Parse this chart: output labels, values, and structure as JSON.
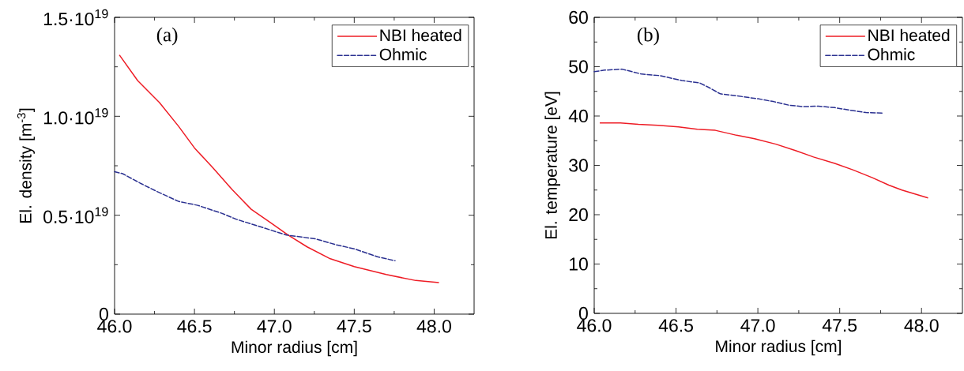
{
  "chart_data": [
    {
      "type": "line",
      "xlabel": "Minor radius [cm]",
      "ylabel": "El. density [m$^{-3}$]",
      "annotations": [
        "(a)"
      ],
      "xlim": [
        46,
        48.25
      ],
      "ylim": [
        0,
        1.5e+19
      ],
      "xticks": [
        {
          "value": 46,
          "label": "46.0"
        },
        {
          "value": 46.5,
          "label": "46.5"
        },
        {
          "value": 47,
          "label": "47.0"
        },
        {
          "value": 47.5,
          "label": "47.5"
        },
        {
          "value": 48,
          "label": "48.0"
        }
      ],
      "yticks": [
        0,
        {
          "value": 5e+18,
          "label": "0.5·10$^{19}$"
        },
        {
          "value": 1e+19,
          "label": "1.0·10$^{19}$"
        },
        {
          "value": 1.5e+19,
          "label": "1.5·10$^{19}$"
        }
      ],
      "legend": "top right",
      "series": [
        {
          "name": "NBI heated",
          "color": "#ee1c25",
          "line_style": "solid",
          "x": [
            46.03,
            46.145,
            46.28,
            46.4,
            46.5,
            46.615,
            46.735,
            46.855,
            46.98,
            47.085,
            47.205,
            47.35,
            47.5,
            47.7,
            47.885,
            48.03
          ],
          "values": [
            1.31e+19,
            1.18e+19,
            1.07e+19,
            9.5e+18,
            8.4e+18,
            7.4e+18,
            6.3e+18,
            5.3e+18,
            4.6e+18,
            4e+18,
            3.4e+18,
            2.8e+18,
            2.4e+18,
            2e+18,
            1.7e+18,
            1.6e+18
          ]
        },
        {
          "name": "Ohmic",
          "color": "#2b3191",
          "line_style": "dashed",
          "x": [
            46.0,
            46.05,
            46.165,
            46.265,
            46.4,
            46.52,
            46.67,
            46.76,
            46.88,
            47.075,
            47.17,
            47.26,
            47.39,
            47.5,
            47.645,
            47.755
          ],
          "values": [
            7.2e+18,
            7.1e+18,
            6.6e+18,
            6.2e+18,
            5.7e+18,
            5.5e+18,
            5.1e+18,
            4.8e+18,
            4.5e+18,
            4e+18,
            3.9e+18,
            3.8e+18,
            3.5e+18,
            3.3e+18,
            2.9e+18,
            2.7e+18
          ]
        }
      ]
    },
    {
      "type": "line",
      "xlabel": "Minor radius [cm]",
      "ylabel": "El. temperature [eV]",
      "annotations": [
        "(b)"
      ],
      "xlim": [
        46,
        48.25
      ],
      "ylim": [
        0,
        60
      ],
      "xticks": [
        {
          "value": 46,
          "label": "46.0"
        },
        {
          "value": 46.5,
          "label": "46.5"
        },
        {
          "value": 47,
          "label": "47.0"
        },
        {
          "value": 47.5,
          "label": "47.5"
        },
        {
          "value": 48,
          "label": "48.0"
        }
      ],
      "yticks": [
        0,
        10,
        20,
        30,
        40,
        50,
        60
      ],
      "legend": "top right",
      "series": [
        {
          "name": "NBI heated",
          "color": "#ee1c25",
          "line_style": "solid",
          "x": [
            46.034,
            46.16,
            46.27,
            46.39,
            46.515,
            46.63,
            46.74,
            46.87,
            46.98,
            47.11,
            47.23,
            47.34,
            47.47,
            47.58,
            47.7,
            47.8,
            47.88,
            48.04
          ],
          "values": [
            38.6,
            38.6,
            38.3,
            38.1,
            37.8,
            37.3,
            37.1,
            36.1,
            35.4,
            34.3,
            33.0,
            31.7,
            30.4,
            29.1,
            27.5,
            26.0,
            25.0,
            23.4
          ]
        },
        {
          "name": "Ohmic",
          "color": "#2b3191",
          "line_style": "dashed",
          "x": [
            46.0,
            46.065,
            46.17,
            46.29,
            46.4,
            46.535,
            46.645,
            46.7,
            46.77,
            46.87,
            47.0,
            47.1,
            47.19,
            47.28,
            47.37,
            47.47,
            47.56,
            47.66,
            47.77
          ],
          "values": [
            49.0,
            49.3,
            49.5,
            48.5,
            48.2,
            47.2,
            46.7,
            45.8,
            44.5,
            44.1,
            43.5,
            42.9,
            42.2,
            41.9,
            42.0,
            41.7,
            41.2,
            40.7,
            40.6
          ]
        }
      ]
    }
  ]
}
